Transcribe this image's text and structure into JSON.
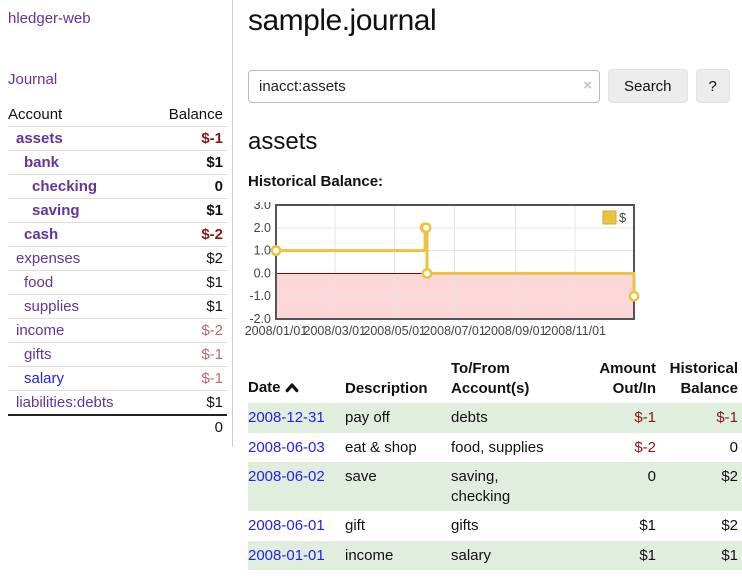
{
  "colors": {
    "link_purple": "#663399",
    "link_blue": "#2222ee",
    "negative_strong": "#8b1616",
    "negative_light": "#b56b6b",
    "row_shade_green": "#e0eedd",
    "series_gold": "#edc240",
    "negative_region_pink": "#fbd7d7",
    "zero_line_red": "#8b0000"
  },
  "sidebar": {
    "brand": "hledger-web",
    "journal_link": "Journal",
    "columns": {
      "account": "Account",
      "balance": "Balance"
    },
    "accounts": [
      {
        "label": "assets",
        "level": 1,
        "bold": true,
        "balance": "$-1",
        "balance_style": "neg-strong"
      },
      {
        "label": "bank",
        "level": 2,
        "bold": true,
        "balance": "$1",
        "balance_style": "pos"
      },
      {
        "label": "checking",
        "level": 3,
        "bold": true,
        "balance": "0",
        "balance_style": "pos"
      },
      {
        "label": "saving",
        "level": 3,
        "bold": true,
        "balance": "$1",
        "balance_style": "pos"
      },
      {
        "label": "cash",
        "level": 2,
        "bold": true,
        "balance": "$-2",
        "balance_style": "neg-strong"
      },
      {
        "label": "expenses",
        "level": 1,
        "bold": false,
        "balance": "$2",
        "balance_style": "pos"
      },
      {
        "label": "food",
        "level": 2,
        "bold": false,
        "balance": "$1",
        "balance_style": "pos"
      },
      {
        "label": "supplies",
        "level": 2,
        "bold": false,
        "balance": "$1",
        "balance_style": "pos"
      },
      {
        "label": "income",
        "level": 1,
        "bold": false,
        "balance": "$-2",
        "balance_style": "neg-light"
      },
      {
        "label": "gifts",
        "level": 2,
        "bold": false,
        "balance": "$-1",
        "balance_style": "neg-light"
      },
      {
        "label": "salary",
        "level": 2,
        "bold": false,
        "balance": "$-1",
        "balance_style": "neg-light",
        "link_color": "blue"
      },
      {
        "label": "liabilities:debts",
        "level": 1,
        "bold": false,
        "balance": "$1",
        "balance_style": "pos"
      }
    ],
    "total": "0"
  },
  "header": {
    "title": "sample.journal"
  },
  "search": {
    "value": "inacct:assets",
    "clear_icon": "×",
    "button_label": "Search",
    "help_label": "?"
  },
  "main": {
    "account_heading": "assets",
    "chart_label": "Historical Balance:"
  },
  "register": {
    "columns": [
      "Date",
      "Description",
      "To/From Account(s)",
      "Amount Out/In",
      "Historical Balance"
    ],
    "sort_icon": "chevron-up",
    "rows": [
      {
        "date": "2008-12-31",
        "description": "pay off",
        "accounts": "debts",
        "amount": "$-1",
        "amount_style": "neg-strong",
        "balance": "$-1",
        "balance_style": "neg-strong",
        "shaded": true
      },
      {
        "date": "2008-06-03",
        "description": "eat & shop",
        "accounts": "food, supplies",
        "amount": "$-2",
        "amount_style": "neg-strong",
        "balance": "0",
        "balance_style": "pos",
        "shaded": false
      },
      {
        "date": "2008-06-02",
        "description": "save",
        "accounts": "saving, checking",
        "amount": "0",
        "amount_style": "pos",
        "balance": "$2",
        "balance_style": "pos",
        "shaded": true
      },
      {
        "date": "2008-06-01",
        "description": "gift",
        "accounts": "gifts",
        "amount": "$1",
        "amount_style": "pos",
        "balance": "$2",
        "balance_style": "pos",
        "shaded": false
      },
      {
        "date": "2008-01-01",
        "description": "income",
        "accounts": "salary",
        "amount": "$1",
        "amount_style": "pos",
        "balance": "$1",
        "balance_style": "pos",
        "shaded": true
      }
    ]
  },
  "chart_data": {
    "type": "line",
    "title": "Historical Balance:",
    "legend": [
      {
        "label": "$",
        "color": "#edc240"
      }
    ],
    "legend_position": "top-right",
    "grid": true,
    "xlim": [
      "2008-01-01",
      "2008-12-31"
    ],
    "ylim": [
      -2,
      3
    ],
    "y_ticks": [
      {
        "label": "3.0",
        "value": 3
      },
      {
        "label": "2.0",
        "value": 2
      },
      {
        "label": "1.0",
        "value": 1
      },
      {
        "label": "0.0",
        "value": 0
      },
      {
        "label": "-1.0",
        "value": -1
      },
      {
        "label": "-2.0",
        "value": -2
      }
    ],
    "x_ticks": [
      {
        "label": "2008/01/01",
        "date": "2008-01-01"
      },
      {
        "label": "2008/03/01",
        "date": "2008-03-01"
      },
      {
        "label": "2008/05/01",
        "date": "2008-05-01"
      },
      {
        "label": "2008/07/01",
        "date": "2008-07-01"
      },
      {
        "label": "2008/09/01",
        "date": "2008-09-01"
      },
      {
        "label": "2008/11/01",
        "date": "2008-11-01"
      }
    ],
    "series": [
      {
        "name": "$",
        "color": "#edc240",
        "style": "step",
        "path_points": [
          [
            "2008-01-01",
            1
          ],
          [
            "2008-06-01",
            1
          ],
          [
            "2008-06-01",
            2
          ],
          [
            "2008-06-03",
            2
          ],
          [
            "2008-06-03",
            0
          ],
          [
            "2008-12-31",
            0
          ],
          [
            "2008-12-31",
            -1
          ]
        ],
        "markers": [
          [
            "2008-01-01",
            1
          ],
          [
            "2008-06-01",
            2
          ],
          [
            "2008-06-02",
            2
          ],
          [
            "2008-06-03",
            0
          ],
          [
            "2008-12-31",
            -1
          ]
        ]
      }
    ],
    "negative_region_color": "#fbd7d7",
    "zero_line_color": "#8b0000"
  }
}
